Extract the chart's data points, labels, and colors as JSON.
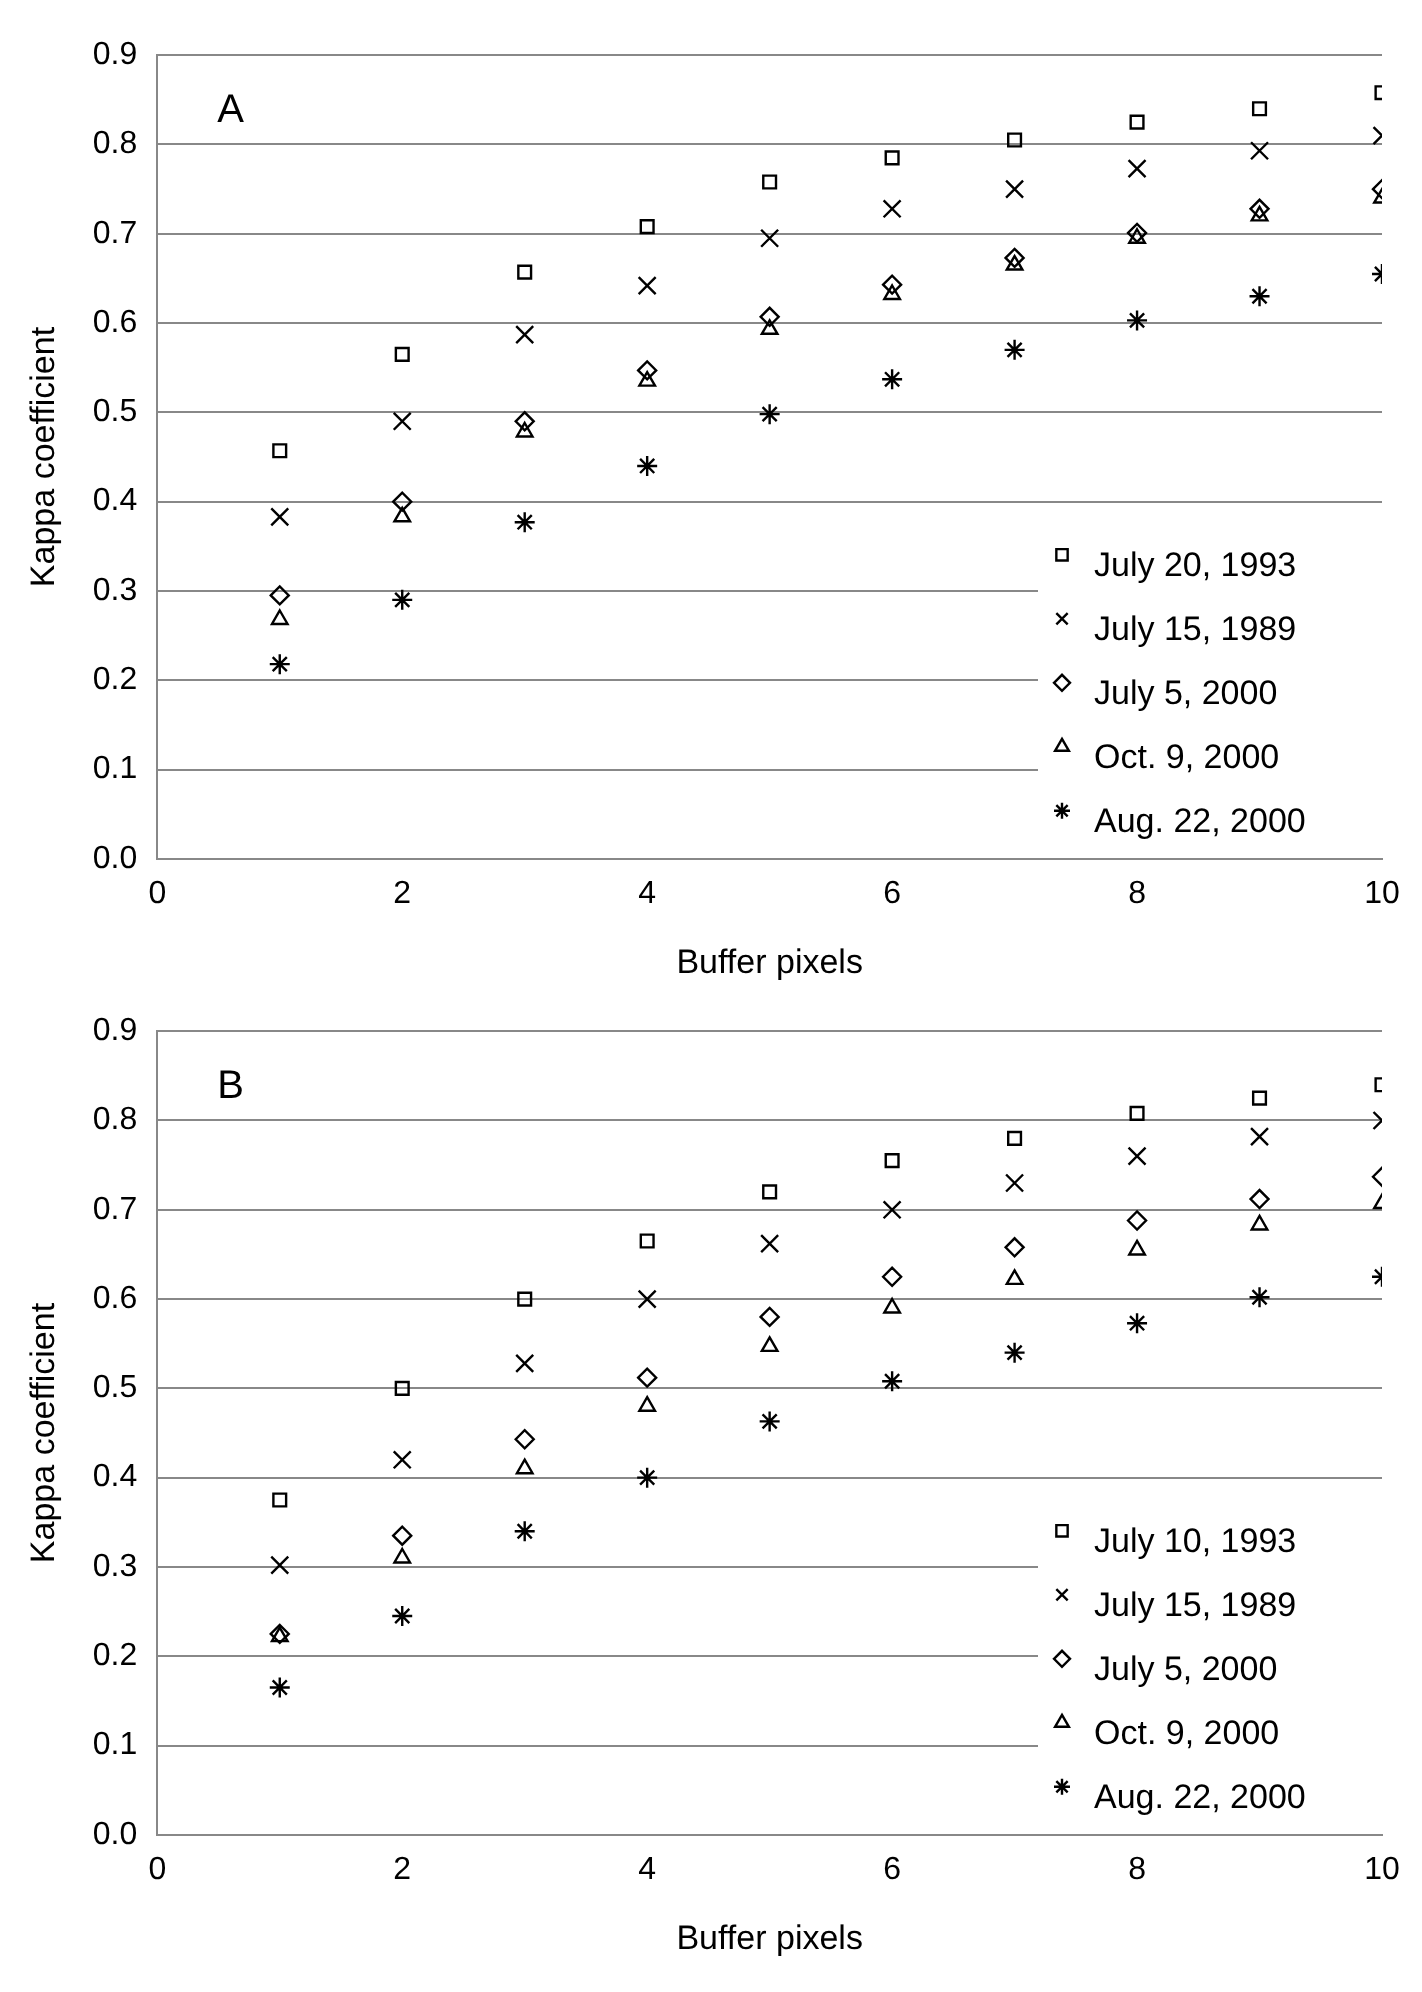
{
  "chart_data": [
    {
      "type": "scatter",
      "title": "A",
      "xlabel": "Buffer pixels",
      "ylabel": "Kappa coefficient",
      "x": [
        1,
        2,
        3,
        4,
        5,
        6,
        7,
        8,
        9,
        10
      ],
      "xlim": [
        0,
        10
      ],
      "xticks": [
        0,
        2,
        4,
        6,
        8,
        10
      ],
      "ylim": [
        0,
        0.9
      ],
      "yticks": [
        {
          "value": 0,
          "label": "0.0"
        },
        0.1,
        0.2,
        0.3,
        0.4,
        0.5,
        0.6,
        0.7,
        0.8,
        0.9
      ],
      "grid": "y",
      "legend": "bottom right",
      "series": [
        {
          "name": "July 20, 1993",
          "color": "#000000",
          "marker": "square",
          "values": [
            0.457,
            0.565,
            0.657,
            0.708,
            0.758,
            0.785,
            0.805,
            0.825,
            0.84,
            0.858
          ]
        },
        {
          "name": "July 15, 1989",
          "color": "#000000",
          "marker": "cross",
          "values": [
            0.383,
            0.49,
            0.587,
            0.642,
            0.695,
            0.728,
            0.75,
            0.773,
            0.793,
            0.81
          ]
        },
        {
          "name": "July 5, 2000",
          "color": "#000000",
          "marker": "diamond",
          "values": [
            0.295,
            0.4,
            0.49,
            0.547,
            0.607,
            0.643,
            0.673,
            0.701,
            0.728,
            0.75
          ]
        },
        {
          "name": "Oct. 9, 2000",
          "color": "#000000",
          "marker": "triangle",
          "values": [
            0.268,
            0.383,
            0.478,
            0.535,
            0.593,
            0.632,
            0.665,
            0.695,
            0.72,
            0.74
          ]
        },
        {
          "name": "Aug. 22, 2000",
          "color": "#000000",
          "values": [
            0.218,
            0.29,
            0.377,
            0.44,
            0.498,
            0.537,
            0.57,
            0.603,
            0.63,
            0.655
          ]
        }
      ]
    },
    {
      "type": "scatter",
      "title": "B",
      "xlabel": "Buffer pixels",
      "ylabel": "Kappa coefficient",
      "x": [
        1,
        2,
        3,
        4,
        5,
        6,
        7,
        8,
        9,
        10
      ],
      "xlim": [
        0,
        10
      ],
      "xticks": [
        0,
        2,
        4,
        6,
        8,
        10
      ],
      "ylim": [
        0,
        0.9
      ],
      "yticks": [
        {
          "value": 0,
          "label": "0.0"
        },
        0.1,
        0.2,
        0.3,
        0.4,
        0.5,
        0.6,
        0.7,
        0.8,
        0.9
      ],
      "grid": "y",
      "legend": "bottom right",
      "series": [
        {
          "name": "July 10, 1993",
          "color": "#000000",
          "marker": "square",
          "values": [
            0.375,
            0.5,
            0.6,
            0.665,
            0.72,
            0.755,
            0.78,
            0.808,
            0.825,
            0.84
          ]
        },
        {
          "name": "July 15, 1989",
          "color": "#000000",
          "marker": "cross",
          "values": [
            0.302,
            0.42,
            0.528,
            0.6,
            0.662,
            0.7,
            0.73,
            0.76,
            0.782,
            0.8
          ]
        },
        {
          "name": "July 5, 2000",
          "color": "#000000",
          "marker": "diamond",
          "values": [
            0.225,
            0.335,
            0.443,
            0.512,
            0.58,
            0.625,
            0.658,
            0.688,
            0.712,
            0.737
          ]
        },
        {
          "name": "Oct. 9, 2000",
          "color": "#000000",
          "marker": "triangle",
          "values": [
            0.222,
            0.31,
            0.41,
            0.48,
            0.547,
            0.59,
            0.622,
            0.655,
            0.683,
            0.707
          ]
        },
        {
          "name": "Aug. 22, 2000",
          "color": "#000000",
          "values": [
            0.165,
            0.245,
            0.34,
            0.4,
            0.463,
            0.508,
            0.54,
            0.573,
            0.602,
            0.625
          ]
        }
      ]
    }
  ]
}
